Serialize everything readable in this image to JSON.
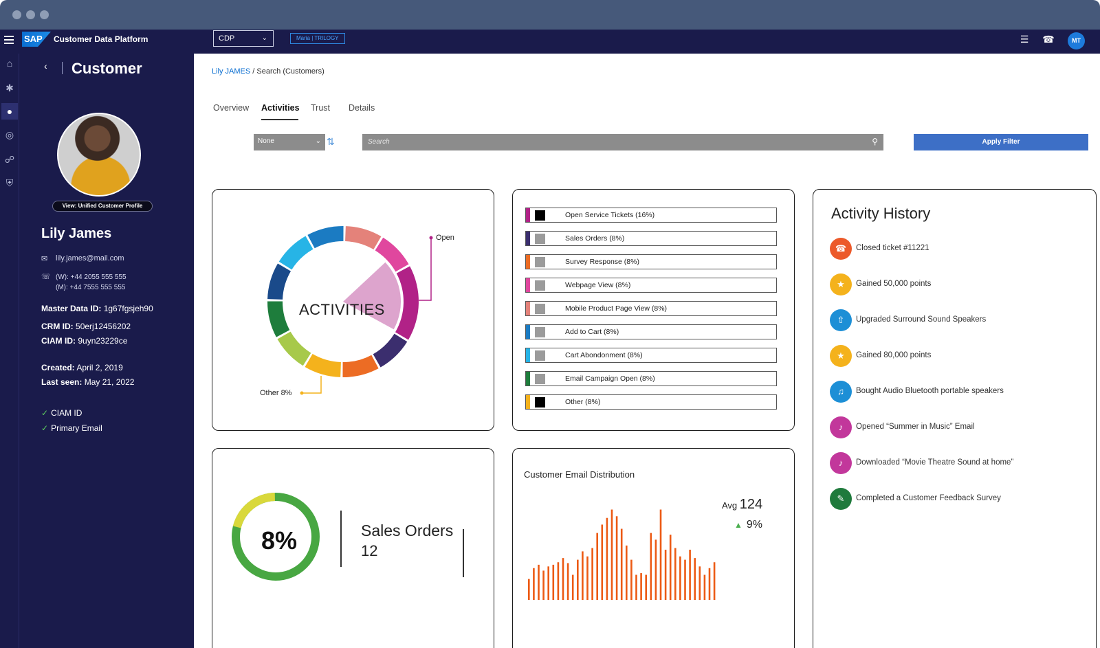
{
  "header": {
    "app_title": "Customer Data Platform",
    "logo_text": "SAP",
    "context_select": "CDP",
    "tenant_badge": "Maria | TRILOGY",
    "user_initials": "MT"
  },
  "side": {
    "title": "Customer",
    "view_profile_button": "View: Unified Customer Profile",
    "name": "Lily James",
    "email": "lily.james@mail.com",
    "phone_work": "(W): +44 2055 555 555",
    "phone_mobile": "(M): +44 7555 555 555",
    "fields": [
      {
        "label": "Master Data ID:",
        "value": "1g67fgsjeh90"
      },
      {
        "label": "CRM ID:",
        "value": "50erj12456202"
      },
      {
        "label": "CIAM ID:",
        "value": "9uyn23229ce"
      },
      {
        "label": "Created:",
        "value": "April 2, 2019"
      },
      {
        "label": "Last seen:",
        "value": "May 21, 2022"
      }
    ],
    "checks": [
      "CIAM ID",
      "Primary Email"
    ]
  },
  "main": {
    "breadcrumb_link": "Lily JAMES",
    "breadcrumb_rest": " / Search (Customers)",
    "tabs": [
      "Overview",
      "Activities",
      "Trust",
      "Details"
    ],
    "filter_select": "None",
    "search_placeholder": "Search",
    "apply_button": "Apply Filter"
  },
  "activities_chart": {
    "center_label": "ACTIVITIES",
    "callout_open": "Open",
    "callout_other": "Other 8%"
  },
  "legend": [
    {
      "label": "Open Service Tickets (16%)",
      "color": "#b12287",
      "swatch": "#000000"
    },
    {
      "label": "Sales Orders (8%)",
      "color": "#3b2e6e",
      "swatch": "#9b9b9b"
    },
    {
      "label": "Survey Response (8%)",
      "color": "#ec6c24",
      "swatch": "#9b9b9b"
    },
    {
      "label": "Webpage View (8%)",
      "color": "#e0479e",
      "swatch": "#9b9b9b"
    },
    {
      "label": "Mobile Product Page View (8%)",
      "color": "#e4827a",
      "swatch": "#9b9b9b"
    },
    {
      "label": "Add to Cart (8%)",
      "color": "#1b7bc2",
      "swatch": "#9b9b9b"
    },
    {
      "label": "Cart Abondonment (8%)",
      "color": "#27b4e6",
      "swatch": "#9b9b9b"
    },
    {
      "label": "Email Campaign Open (8%)",
      "color": "#1e7d3c",
      "swatch": "#9b9b9b"
    },
    {
      "label": "Other (8%)",
      "color": "#f4b21c",
      "swatch": "#000000"
    }
  ],
  "activity_history": {
    "title": "Activity History",
    "items": [
      {
        "label": "Closed ticket #11221",
        "icon": "headset-icon",
        "color": "#ec5a2a"
      },
      {
        "label": "Gained 50,000 points",
        "icon": "trophy-icon",
        "color": "#f4b21c"
      },
      {
        "label": "Upgraded Surround Sound Speakers",
        "icon": "upgrade-icon",
        "color": "#1d8fd6"
      },
      {
        "label": "Gained 80,000 points",
        "icon": "trophy-icon",
        "color": "#f4b21c"
      },
      {
        "label": "Bought Audio Bluetooth portable speakers",
        "icon": "speaker-icon",
        "color": "#1d8fd6"
      },
      {
        "label": "Opened “Summer in Music” Email",
        "icon": "megaphone-icon",
        "color": "#c2379b"
      },
      {
        "label": "Downloaded “Movie Theatre Sound at home”",
        "icon": "megaphone-icon",
        "color": "#c2379b"
      },
      {
        "label": "Completed a Customer Feedback Survey",
        "icon": "survey-icon",
        "color": "#1f7a3c"
      }
    ]
  },
  "sales_card": {
    "percent": "8%",
    "label": "Sales Orders",
    "count": "12",
    "percent_value": 8
  },
  "email_card": {
    "title": "Customer Email Distribution",
    "avg_label": "Avg",
    "avg_value": "124",
    "change": "9%",
    "bar_color": "#ec5a14"
  },
  "chart_data": [
    {
      "type": "pie",
      "categories": [
        "Open Service Tickets",
        "Sales Orders",
        "Survey Response",
        "Webpage View",
        "Mobile Product Page View",
        "Add to Cart",
        "Cart Abondonment",
        "Email Campaign Open",
        "Other"
      ],
      "values": [
        16,
        8,
        8,
        8,
        8,
        8,
        8,
        8,
        8
      ],
      "title": "ACTIVITIES"
    },
    {
      "type": "bar",
      "title": "Customer Email Distribution",
      "values": [
        25,
        38,
        42,
        35,
        40,
        42,
        45,
        50,
        44,
        30,
        48,
        58,
        52,
        62,
        80,
        90,
        98,
        108,
        100,
        85,
        65,
        48,
        30,
        32,
        30,
        80,
        72,
        108,
        60,
        78,
        62,
        52,
        48,
        60,
        50,
        40,
        30,
        38,
        45
      ]
    }
  ]
}
